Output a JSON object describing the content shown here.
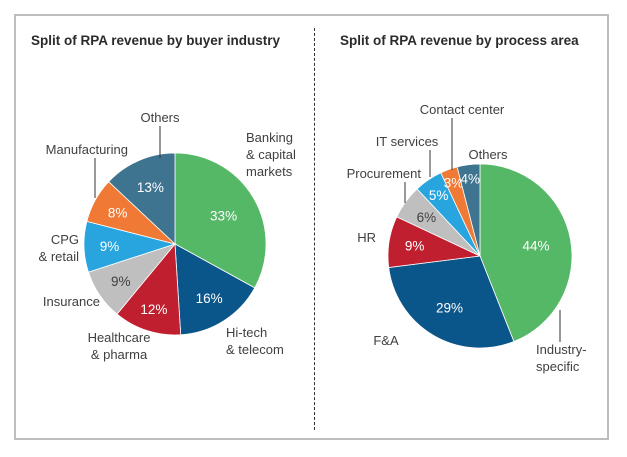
{
  "chart_data": [
    {
      "type": "pie",
      "title": "Split of RPA revenue by buyer industry",
      "slices": [
        {
          "label": [
            "Banking",
            "& capital",
            "markets"
          ],
          "value": 33,
          "value_label": "33%",
          "color": "#54b867",
          "text_color": "#ffffff"
        },
        {
          "label": [
            "Hi-tech",
            "& telecom"
          ],
          "value": 16,
          "value_label": "16%",
          "color": "#0a5589",
          "text_color": "#ffffff"
        },
        {
          "label": [
            "Healthcare",
            "& pharma"
          ],
          "value": 12,
          "value_label": "12%",
          "color": "#c01f2f",
          "text_color": "#ffffff"
        },
        {
          "label": [
            "Insurance"
          ],
          "value": 9,
          "value_label": "9%",
          "color": "#bfbfbf",
          "text_color": "#404040"
        },
        {
          "label": [
            "CPG",
            "& retail"
          ],
          "value": 9,
          "value_label": "9%",
          "color": "#28a5df",
          "text_color": "#ffffff"
        },
        {
          "label": [
            "Manufacturing"
          ],
          "value": 8,
          "value_label": "8%",
          "color": "#f07a35",
          "text_color": "#ffffff"
        },
        {
          "label": [
            "Others"
          ],
          "value": 13,
          "value_label": "13%",
          "color": "#3f7490",
          "text_color": "#ffffff"
        }
      ]
    },
    {
      "type": "pie",
      "title": "Split of RPA revenue by process area",
      "slices": [
        {
          "label": [
            "Industry-",
            "specific"
          ],
          "value": 44,
          "value_label": "44%",
          "color": "#54b867",
          "text_color": "#ffffff"
        },
        {
          "label": [
            "F&A"
          ],
          "value": 29,
          "value_label": "29%",
          "color": "#0a5589",
          "text_color": "#ffffff"
        },
        {
          "label": [
            "HR"
          ],
          "value": 9,
          "value_label": "9%",
          "color": "#c01f2f",
          "text_color": "#ffffff"
        },
        {
          "label": [
            "Procurement"
          ],
          "value": 6,
          "value_label": "6%",
          "color": "#bfbfbf",
          "text_color": "#404040"
        },
        {
          "label": [
            "IT services"
          ],
          "value": 5,
          "value_label": "5%",
          "color": "#28a5df",
          "text_color": "#ffffff"
        },
        {
          "label": [
            "Contact center"
          ],
          "value": 3,
          "value_label": "3%",
          "color": "#f07a35",
          "text_color": "#ffffff"
        },
        {
          "label": [
            "Others"
          ],
          "value": 4,
          "value_label": "4%",
          "color": "#3f7490",
          "text_color": "#ffffff"
        }
      ]
    }
  ]
}
